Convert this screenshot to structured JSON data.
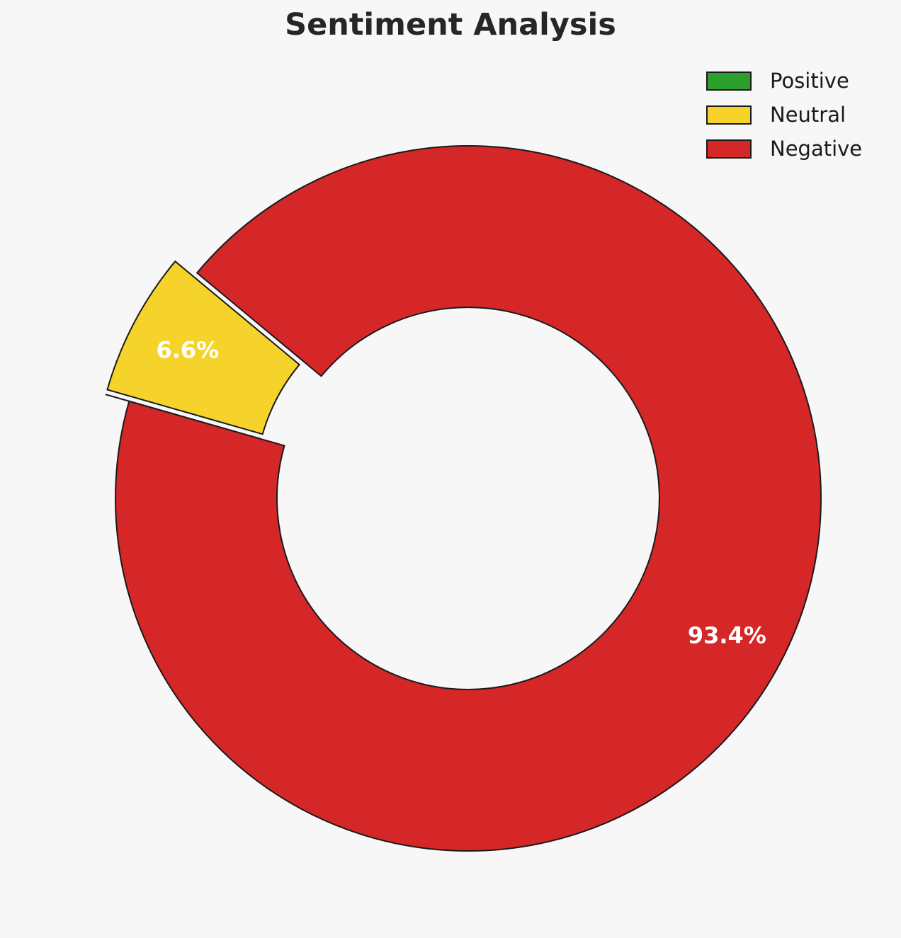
{
  "page": {
    "background_color": "#f7f7f7"
  },
  "chart_data": {
    "type": "pie",
    "subtype": "donut",
    "title": "Sentiment Analysis",
    "labels": [
      "Positive",
      "Neutral",
      "Negative"
    ],
    "values": [
      0.0,
      6.6,
      93.4
    ],
    "pct_labels": [
      "",
      "6.6%",
      "93.4%"
    ],
    "colors": [
      "#2CA02C",
      "#F6D32B",
      "#D62728"
    ],
    "edge_color": "#1a1a1a",
    "start_angle_deg": 164,
    "direction": "clockwise",
    "explode": [
      0.07,
      0.07,
      0
    ],
    "donut_hole_ratio": 0.542,
    "pct_distance": 0.83,
    "legend_position": "upper-right",
    "grid": false
  }
}
